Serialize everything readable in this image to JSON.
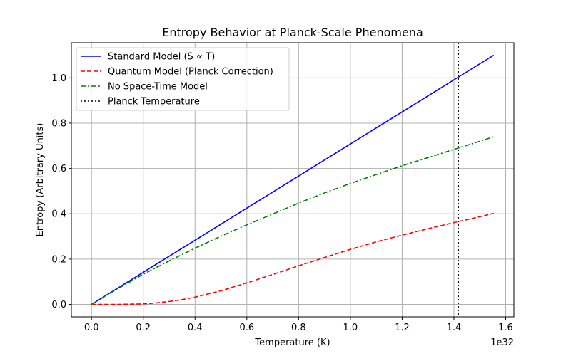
{
  "chart_data": {
    "type": "line",
    "title": "Entropy Behavior at Planck-Scale Phenomena",
    "xlabel": "Temperature (K)",
    "ylabel": "Entropy (Arbitrary Units)",
    "x_offset_label": "1e32",
    "x_scale": 1e+32,
    "xlim": [
      -0.0777,
      1.6317
    ],
    "ylim": [
      -0.055,
      1.155
    ],
    "xticks": [
      0.0,
      0.2,
      0.4,
      0.6,
      0.8,
      1.0,
      1.2,
      1.4,
      1.6
    ],
    "xtick_labels": [
      "0.0",
      "0.2",
      "0.4",
      "0.6",
      "0.8",
      "1.0",
      "1.2",
      "1.4",
      "1.6"
    ],
    "yticks": [
      0.0,
      0.2,
      0.4,
      0.6,
      0.8,
      1.0
    ],
    "ytick_labels": [
      "0.0",
      "0.2",
      "0.4",
      "0.6",
      "0.8",
      "1.0"
    ],
    "grid": true,
    "legend_position": "upper-left",
    "series": [
      {
        "name": "Standard Model (S ∝ T)",
        "color": "#0000ff",
        "style": "solid",
        "x": [
          0.0,
          0.2,
          0.4,
          0.6,
          0.8,
          1.0,
          1.2,
          1.4,
          1.554
        ],
        "y": [
          0.0,
          0.1416,
          0.2832,
          0.4248,
          0.5664,
          0.708,
          0.8496,
          0.9912,
          1.1
        ]
      },
      {
        "name": "Quantum Model (Planck Correction)",
        "color": "#ff0000",
        "style": "dashed",
        "x": [
          0.0,
          0.1,
          0.2,
          0.25,
          0.3,
          0.35,
          0.4,
          0.5,
          0.6,
          0.7,
          0.8,
          0.9,
          1.0,
          1.1,
          1.2,
          1.3,
          1.4,
          1.5,
          1.554
        ],
        "y": [
          0.0,
          0.0,
          0.002,
          0.006,
          0.013,
          0.021,
          0.032,
          0.06,
          0.095,
          0.132,
          0.17,
          0.207,
          0.243,
          0.276,
          0.306,
          0.334,
          0.361,
          0.387,
          0.402
        ]
      },
      {
        "name": "No Space-Time Model",
        "color": "#008000",
        "style": "dashdot",
        "x": [
          0.0,
          0.1,
          0.2,
          0.3,
          0.4,
          0.5,
          0.6,
          0.7,
          0.8,
          0.9,
          1.0,
          1.1,
          1.2,
          1.3,
          1.4,
          1.5,
          1.554
        ],
        "y": [
          0.0,
          0.068,
          0.133,
          0.192,
          0.248,
          0.301,
          0.351,
          0.399,
          0.447,
          0.492,
          0.534,
          0.573,
          0.612,
          0.648,
          0.684,
          0.72,
          0.74
        ]
      },
      {
        "name": "Planck Temperature",
        "color": "#000000",
        "style": "dotted",
        "vline_x": 1.417
      }
    ]
  }
}
